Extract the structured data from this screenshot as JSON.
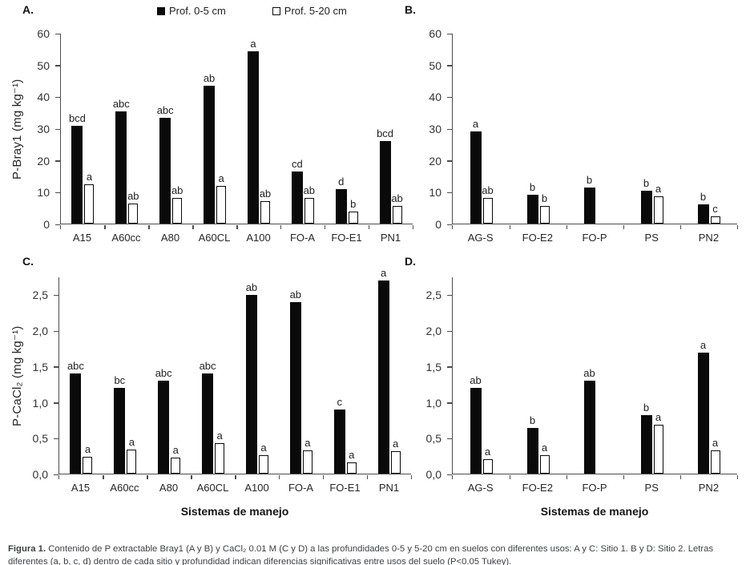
{
  "legend": {
    "items": [
      {
        "label": "Prof. 0-5 cm",
        "color": "#000000",
        "style": "filled-square"
      },
      {
        "label": "Prof. 5-20 cm",
        "color": "#ffffff",
        "style": "open-square"
      }
    ]
  },
  "chart_data": [
    {
      "id": "A",
      "panel_label": "A.",
      "type": "bar",
      "ylabel": "P-Bray1 (mg kg⁻¹)",
      "ylim": [
        0,
        60
      ],
      "grid": false,
      "yticks": [
        {
          "v": 0,
          "label": "0"
        },
        {
          "v": 10,
          "label": "10"
        },
        {
          "v": 20,
          "label": "20"
        },
        {
          "v": 30,
          "label": "30"
        },
        {
          "v": 40,
          "label": "40"
        },
        {
          "v": 50,
          "label": "50"
        },
        {
          "v": 60,
          "label": "60"
        }
      ],
      "categories": [
        "A15",
        "A60cc",
        "A80",
        "A60CL",
        "A100",
        "FO-A",
        "FO-E1",
        "PN1"
      ],
      "series": [
        {
          "name": "Prof. 0-5 cm",
          "color": "#000000",
          "values": [
            31,
            35.5,
            33.5,
            43.5,
            54.5,
            16.5,
            11,
            26
          ],
          "letters": [
            "bcd",
            "abc",
            "abc",
            "ab",
            "a",
            "cd",
            "d",
            "bcd"
          ]
        },
        {
          "name": "Prof. 5-20 cm",
          "color": "#ffffff",
          "values": [
            12.3,
            6.3,
            8,
            12,
            7,
            8,
            3.7,
            5.7
          ],
          "letters": [
            "a",
            "ab",
            "ab",
            "a",
            "ab",
            "ab",
            "b",
            "ab"
          ]
        }
      ]
    },
    {
      "id": "B",
      "panel_label": "B.",
      "type": "bar",
      "ylim": [
        0,
        60
      ],
      "grid": false,
      "yticks": [
        {
          "v": 0,
          "label": "0"
        },
        {
          "v": 10,
          "label": "10"
        },
        {
          "v": 20,
          "label": "20"
        },
        {
          "v": 30,
          "label": "30"
        },
        {
          "v": 40,
          "label": "40"
        },
        {
          "v": 50,
          "label": "50"
        },
        {
          "v": 60,
          "label": "60"
        }
      ],
      "categories": [
        "AG-S",
        "FO-E2",
        "FO-P",
        "PS",
        "PN2"
      ],
      "series": [
        {
          "name": "Prof. 0-5 cm",
          "color": "#000000",
          "values": [
            29,
            9,
            11.5,
            10.5,
            6
          ],
          "letters": [
            "a",
            "b",
            "b",
            "b",
            "b"
          ]
        },
        {
          "name": "Prof. 5-20 cm",
          "color": "#ffffff",
          "values": [
            8,
            5.5,
            null,
            8.5,
            2.4
          ],
          "letters": [
            "ab",
            "b",
            null,
            "a",
            "c"
          ]
        }
      ]
    },
    {
      "id": "C",
      "panel_label": "C.",
      "type": "bar",
      "ylabel": "P-CaCl₂ (mg kg⁻¹)",
      "xlabel": "Sistemas de manejo",
      "ylim": [
        0,
        2.75
      ],
      "grid": false,
      "yticks": [
        {
          "v": 0,
          "label": "0,0"
        },
        {
          "v": 0.5,
          "label": "0,5"
        },
        {
          "v": 1,
          "label": "1,0"
        },
        {
          "v": 1.5,
          "label": "1,5"
        },
        {
          "v": 2,
          "label": "2,0"
        },
        {
          "v": 2.5,
          "label": "2,5"
        }
      ],
      "categories": [
        "A15",
        "A60cc",
        "A80",
        "A60CL",
        "A100",
        "FO-A",
        "FO-E1",
        "PN1"
      ],
      "series": [
        {
          "name": "Prof. 0-5 cm",
          "color": "#000000",
          "values": [
            1.4,
            1.2,
            1.3,
            1.4,
            2.5,
            2.4,
            0.9,
            2.7
          ],
          "letters": [
            "abc",
            "bc",
            "abc",
            "abc",
            "ab",
            "ab",
            "c",
            "a"
          ]
        },
        {
          "name": "Prof. 5-20 cm",
          "color": "#ffffff",
          "values": [
            0.24,
            0.34,
            0.22,
            0.43,
            0.26,
            0.33,
            0.16,
            0.32
          ],
          "letters": [
            "a",
            "a",
            "a",
            "a",
            "a",
            "a",
            "a",
            "a"
          ]
        }
      ]
    },
    {
      "id": "D",
      "panel_label": "D.",
      "type": "bar",
      "xlabel": "Sistemas de manejo",
      "ylim": [
        0,
        2.75
      ],
      "grid": false,
      "yticks": [
        {
          "v": 0,
          "label": "0,0"
        },
        {
          "v": 0.5,
          "label": "0,5"
        },
        {
          "v": 1,
          "label": "1,0"
        },
        {
          "v": 1.5,
          "label": "1,5"
        },
        {
          "v": 2,
          "label": "2,0"
        },
        {
          "v": 2.5,
          "label": "2,5"
        }
      ],
      "categories": [
        "AG-S",
        "FO-E2",
        "FO-P",
        "PS",
        "PN2"
      ],
      "series": [
        {
          "name": "Prof. 0-5 cm",
          "color": "#000000",
          "values": [
            1.2,
            0.64,
            1.3,
            0.82,
            1.7
          ],
          "letters": [
            "ab",
            "b",
            "ab",
            "b",
            "a"
          ]
        },
        {
          "name": "Prof. 5-20 cm",
          "color": "#ffffff",
          "values": [
            0.2,
            0.26,
            null,
            0.69,
            0.33
          ],
          "letters": [
            "a",
            "a",
            null,
            "a",
            "a"
          ]
        }
      ]
    }
  ],
  "caption": {
    "label": "Figura 1.",
    "text": "Contenido de P extractable Bray1 (A y B) y CaCl₂ 0.01 M (C y D) a las profundidades 0-5 y 5-20 cm en suelos con diferentes usos: A y C: Sitio 1. B y D: Sitio 2. Letras diferentes (a, b, c, d) dentro de cada sitio y profundidad indican diferencias significativas entre usos del suelo (P<0.05 Tukey)."
  }
}
